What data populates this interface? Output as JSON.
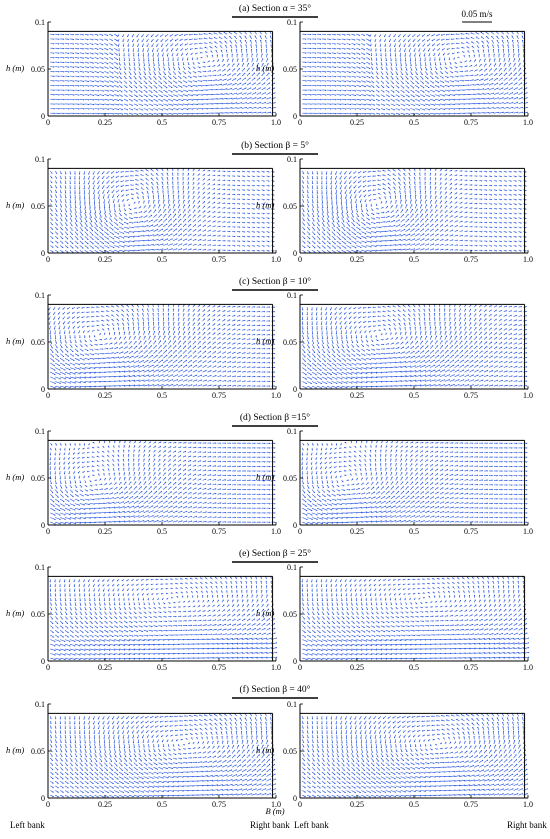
{
  "scale_bar": {
    "label": "0.05 m/s"
  },
  "colors": {
    "vector": "#1f4fe0",
    "axis": "#000000"
  },
  "axes": {
    "xlabel": "B (m)",
    "ylabel": "h (m)",
    "xlim": [
      0,
      1.0
    ],
    "ylim": [
      0,
      0.1
    ],
    "x_ticks": [
      "0",
      "0.25",
      "0.5",
      "0.75",
      "1.0"
    ],
    "y_ticks": [
      "0",
      "0.05",
      "0.1"
    ],
    "water_depth": 0.09
  },
  "bank_labels": {
    "left": "Left bank",
    "right": "Right bank"
  },
  "chart_data": [
    {
      "type": "vector-field",
      "title": "(a)  Section  α = 35°",
      "panels": 2
    },
    {
      "type": "vector-field",
      "title": "(b)  Section  β = 5°",
      "panels": 2
    },
    {
      "type": "vector-field",
      "title": "(c)  Section  β = 10°",
      "panels": 2
    },
    {
      "type": "vector-field",
      "title": "(d)  Section  β =15°",
      "panels": 2
    },
    {
      "type": "vector-field",
      "title": "(e)  Section  β = 25°",
      "panels": 2
    },
    {
      "type": "vector-field",
      "title": "(f)  Section  β = 40°",
      "panels": 2
    }
  ]
}
